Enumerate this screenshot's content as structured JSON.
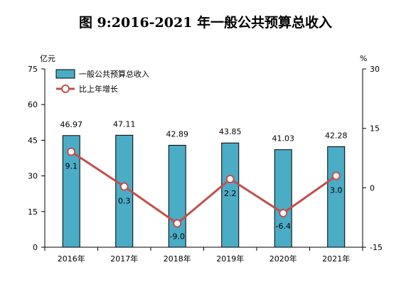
{
  "colors": {
    "bar_fill": "#4BACC6",
    "bar_stroke": "#000000",
    "line": "#C0504D",
    "marker_fill": "#FFFFFF"
  },
  "chart_data": {
    "type": "bar",
    "title": "图 9:2016-2021 年一般公共预算总收入",
    "categories": [
      "2016年",
      "2017年",
      "2018年",
      "2019年",
      "2020年",
      "2021年"
    ],
    "left_axis": {
      "unit": "亿元",
      "ylim": [
        0,
        75
      ],
      "ticks": [
        "0",
        "15",
        "30",
        "45",
        "60",
        "75"
      ]
    },
    "right_axis": {
      "unit": "%",
      "ylim": [
        -15,
        30
      ],
      "ticks": [
        "-15",
        "0",
        "15",
        "30"
      ]
    },
    "grid": false,
    "legend_position": "top-left",
    "series": [
      {
        "name": "一般公共预算总收入",
        "kind": "bar",
        "axis": "left",
        "values": [
          46.97,
          47.11,
          42.89,
          43.85,
          41.03,
          42.28
        ],
        "labels": [
          "46.97",
          "47.11",
          "42.89",
          "43.85",
          "41.03",
          "42.28"
        ]
      },
      {
        "name": "比上年增长",
        "kind": "line",
        "axis": "right",
        "values": [
          9.1,
          0.3,
          -9.0,
          2.2,
          -6.4,
          3.0
        ],
        "labels": [
          "9.1",
          "0.3",
          "-9.0",
          "2.2",
          "-6.4",
          "3.0"
        ]
      }
    ]
  }
}
